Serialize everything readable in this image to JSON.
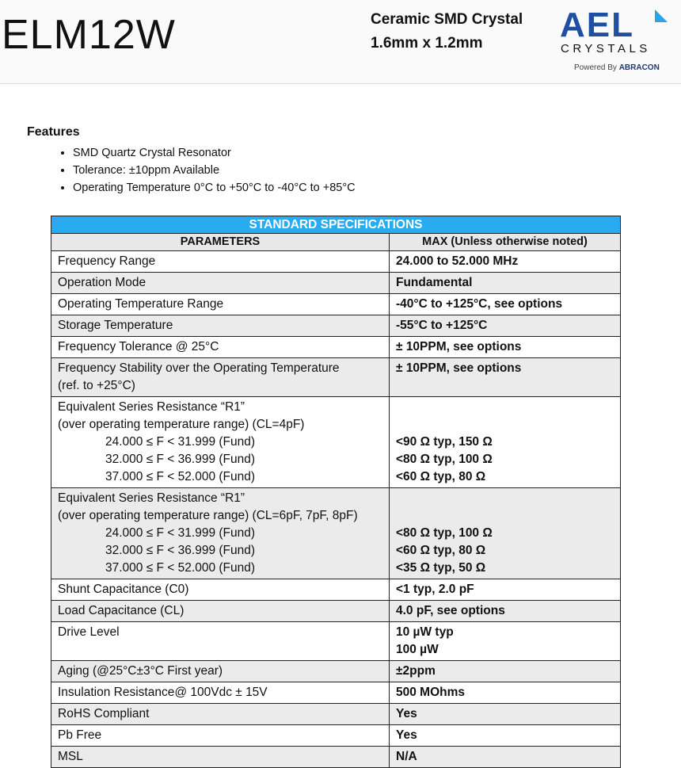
{
  "header": {
    "title": "ELM12W",
    "subtitle_line1": "Ceramic SMD Crystal",
    "subtitle_line2": "1.6mm x 1.2mm",
    "logo_text": "AEL",
    "logo_sub": "CRYSTALS",
    "logo_powered": "Powered By ABRACON",
    "colors": {
      "logo_blue": "#1e4fa0",
      "logo_light": "#2aa3e8"
    }
  },
  "features": {
    "heading": "Features",
    "items": [
      "SMD Quartz Crystal Resonator",
      "Tolerance: ±10ppm Available",
      "Operating Temperature 0°C to +50°C to -40°C to +85°C"
    ]
  },
  "table": {
    "title": "STANDARD SPECIFICATIONS",
    "col1": "PARAMETERS",
    "col2": "MAX (Unless otherwise noted)",
    "header_color": "#29abf2",
    "rows": [
      {
        "p": [
          "Frequency Range"
        ],
        "v": [
          "24.000 to 52.000 MHz"
        ]
      },
      {
        "p": [
          "Operation Mode"
        ],
        "v": [
          "Fundamental"
        ]
      },
      {
        "p": [
          "Operating Temperature Range"
        ],
        "v": [
          "-40°C to +125°C, see options"
        ]
      },
      {
        "p": [
          "Storage Temperature"
        ],
        "v": [
          "-55°C to +125°C"
        ]
      },
      {
        "p": [
          "Frequency Tolerance @ 25°C"
        ],
        "v": [
          "± 10PPM, see options"
        ]
      },
      {
        "p": [
          "Frequency Stability over the Operating Temperature",
          "(ref. to +25°C)"
        ],
        "v": [
          "± 10PPM, see options"
        ]
      },
      {
        "p": [
          "Equivalent Series Resistance “R1”",
          "(over operating temperature range) (CL=4pF)",
          "24.000 ≤ F < 31.999 (Fund)",
          "32.000 ≤ F < 36.999 (Fund)",
          "37.000 ≤ F < 52.000 (Fund)"
        ],
        "v": [
          "",
          "",
          "<90 Ω typ, 150 Ω",
          "<80 Ω typ, 100 Ω",
          "<60 Ω typ, 80 Ω"
        ]
      },
      {
        "p": [
          "Equivalent Series Resistance “R1”",
          "(over operating temperature range) (CL=6pF, 7pF, 8pF)",
          "24.000 ≤ F < 31.999 (Fund)",
          "32.000 ≤ F < 36.999 (Fund)",
          "37.000 ≤ F < 52.000 (Fund)"
        ],
        "v": [
          "",
          "",
          "<80 Ω typ, 100 Ω",
          "<60 Ω typ, 80 Ω",
          "<35 Ω typ, 50 Ω"
        ]
      },
      {
        "p": [
          "Shunt Capacitance (C0)"
        ],
        "v": [
          "<1 typ, 2.0 pF"
        ]
      },
      {
        "p": [
          "Load Capacitance (CL)"
        ],
        "v": [
          "4.0 pF, see options"
        ]
      },
      {
        "p": [
          "Drive Level"
        ],
        "v": [
          "10 µW typ",
          "100  µW"
        ]
      },
      {
        "p": [
          "Aging (@25°C±3°C First year)"
        ],
        "v": [
          "±2ppm"
        ]
      },
      {
        "p": [
          "Insulation Resistance@ 100Vdc ± 15V"
        ],
        "v": [
          "500 MOhms"
        ]
      },
      {
        "p": [
          "RoHS Compliant"
        ],
        "v": [
          "Yes"
        ]
      },
      {
        "p": [
          "Pb Free"
        ],
        "v": [
          "Yes"
        ]
      },
      {
        "p": [
          "MSL"
        ],
        "v": [
          "N/A"
        ]
      }
    ]
  }
}
